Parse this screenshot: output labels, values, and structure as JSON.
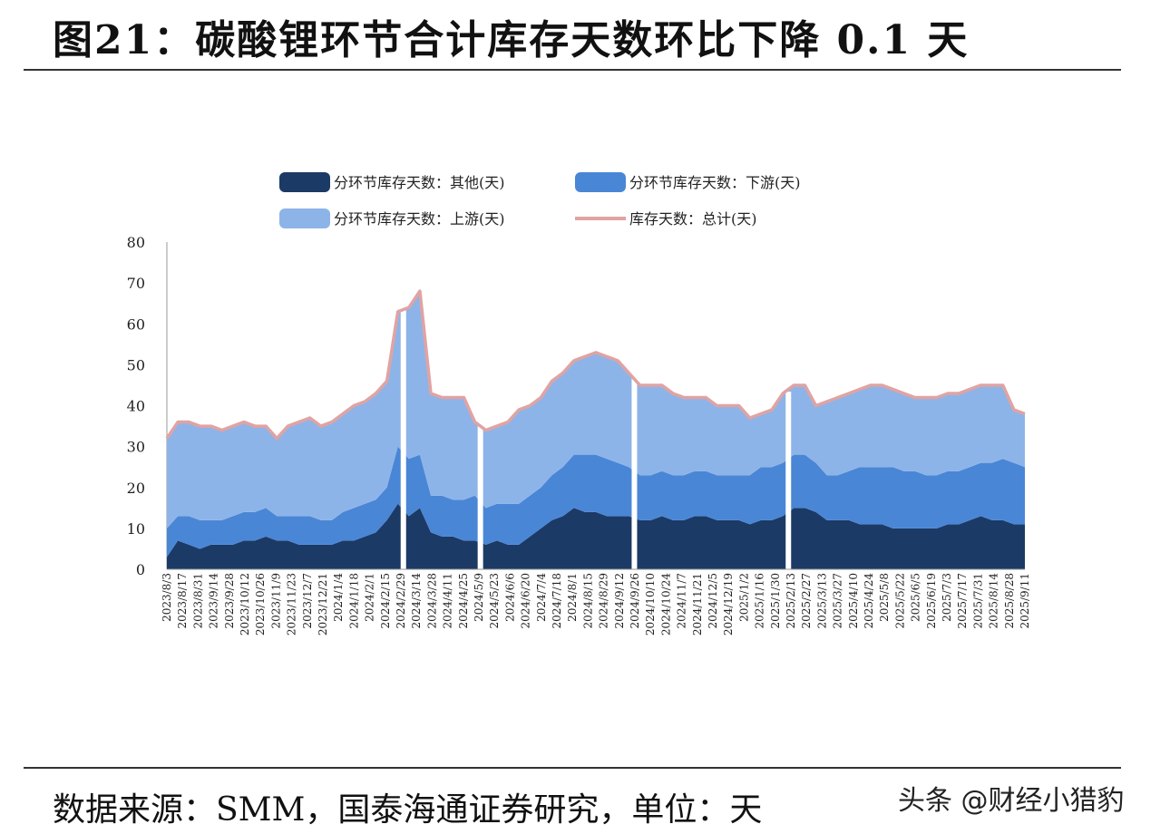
{
  "header": {
    "title": "图21：碳酸锂环节合计库存天数环比下降 0.1 天"
  },
  "footer": {
    "source": "数据来源：SMM，国泰海通证券研究，单位：天",
    "watermark": "头条 @财经小猎豹"
  },
  "colors": {
    "other": "#1b3a66",
    "downstream": "#4a86d6",
    "upstream": "#8db4e8",
    "total_line": "#e0a3a3"
  },
  "chart_data": {
    "type": "area",
    "legend_placement": "top",
    "ylim": [
      0,
      80
    ],
    "yticks": [
      "0",
      "10",
      "20",
      "30",
      "40",
      "50",
      "60",
      "70",
      "80"
    ],
    "grid": false,
    "x_tick_labels": [
      "2023/8/3",
      "2023/8/17",
      "2023/8/31",
      "2023/9/14",
      "2023/9/28",
      "2023/10/12",
      "2023/10/26",
      "2023/11/9",
      "2023/11/23",
      "2023/12/7",
      "2023/12/21",
      "2024/1/4",
      "2024/1/18",
      "2024/2/1",
      "2024/2/15",
      "2024/2/29",
      "2024/3/14",
      "2024/3/28",
      "2024/4/11",
      "2024/4/25",
      "2024/5/9",
      "2024/5/23",
      "2024/6/6",
      "2024/6/20",
      "2024/7/4",
      "2024/7/18",
      "2024/8/1",
      "2024/8/15",
      "2024/8/29",
      "2024/9/12",
      "2024/9/26",
      "2024/10/10",
      "2024/10/24",
      "2024/11/7",
      "2024/11/21",
      "2024/12/5",
      "2024/12/19",
      "2025/1/2",
      "2025/1/16",
      "2025/1/30",
      "2025/2/13",
      "2025/2/27",
      "2025/3/13",
      "2025/3/27",
      "2025/4/10",
      "2025/4/24",
      "2025/5/8",
      "2025/5/22",
      "2025/6/5",
      "2025/6/19",
      "2025/7/3",
      "2025/7/17",
      "2025/7/31",
      "2025/8/14",
      "2025/8/28",
      "2025/9/11"
    ],
    "series": [
      {
        "name": "分环节库存天数：其他(天)",
        "color": "#1b3a66",
        "values": [
          3,
          7,
          6,
          5,
          6,
          6,
          6,
          7,
          7,
          8,
          7,
          7,
          6,
          6,
          6,
          6,
          7,
          7,
          8,
          9,
          12,
          16,
          13,
          15,
          9,
          8,
          8,
          7,
          7,
          6,
          7,
          6,
          6,
          8,
          10,
          12,
          13,
          15,
          14,
          14,
          13,
          13,
          13,
          12,
          12,
          13,
          12,
          12,
          13,
          13,
          12,
          12,
          12,
          11,
          12,
          12,
          13,
          15,
          15,
          14,
          12,
          12,
          12,
          11,
          11,
          11,
          10,
          10,
          10,
          10,
          10,
          11,
          11,
          12,
          13,
          12,
          12,
          11,
          11
        ]
      },
      {
        "name": "分环节库存天数：下游(天)",
        "color": "#4a86d6",
        "values": [
          7,
          6,
          7,
          7,
          6,
          6,
          7,
          7,
          7,
          7,
          6,
          6,
          7,
          7,
          6,
          6,
          7,
          8,
          8,
          8,
          8,
          14,
          14,
          13,
          9,
          10,
          9,
          10,
          11,
          9,
          9,
          10,
          10,
          10,
          10,
          11,
          12,
          13,
          14,
          14,
          14,
          13,
          12,
          11,
          11,
          11,
          11,
          11,
          11,
          11,
          11,
          11,
          11,
          12,
          13,
          13,
          13,
          13,
          13,
          12,
          11,
          11,
          12,
          14,
          14,
          14,
          15,
          14,
          14,
          13,
          13,
          13,
          13,
          13,
          13,
          14,
          15,
          15,
          14
        ]
      },
      {
        "name": "分环节库存天数：上游(天)",
        "color": "#8db4e8",
        "values": [
          22,
          23,
          23,
          23,
          23,
          22,
          22,
          22,
          21,
          20,
          19,
          22,
          23,
          24,
          23,
          24,
          24,
          25,
          25,
          26,
          26,
          33,
          37,
          40,
          25,
          24,
          25,
          25,
          18,
          19,
          19,
          20,
          23,
          22,
          22,
          23,
          23,
          23,
          24,
          25,
          25,
          25,
          23,
          22,
          22,
          21,
          20,
          19,
          18,
          18,
          17,
          17,
          17,
          14,
          13,
          14,
          17,
          17,
          17,
          14,
          18,
          19,
          19,
          19,
          20,
          20,
          19,
          19,
          18,
          19,
          19,
          19,
          19,
          19,
          19,
          19,
          18,
          13,
          13
        ]
      },
      {
        "name": "库存天数：总计(天)",
        "color": "#e0a3a3",
        "values": [
          32,
          36,
          36,
          35,
          35,
          34,
          35,
          36,
          35,
          35,
          32,
          35,
          36,
          37,
          35,
          36,
          38,
          40,
          41,
          43,
          46,
          63,
          64,
          68,
          43,
          42,
          42,
          42,
          36,
          34,
          35,
          36,
          39,
          40,
          42,
          46,
          48,
          51,
          52,
          53,
          52,
          51,
          48,
          45,
          45,
          45,
          43,
          42,
          42,
          42,
          40,
          40,
          40,
          37,
          38,
          39,
          43,
          45,
          45,
          40,
          41,
          42,
          43,
          44,
          45,
          45,
          44,
          43,
          42,
          42,
          42,
          43,
          43,
          44,
          45,
          45,
          45,
          39,
          38
        ]
      }
    ],
    "gaps_after_index": [
      21,
      28,
      42,
      56
    ]
  }
}
